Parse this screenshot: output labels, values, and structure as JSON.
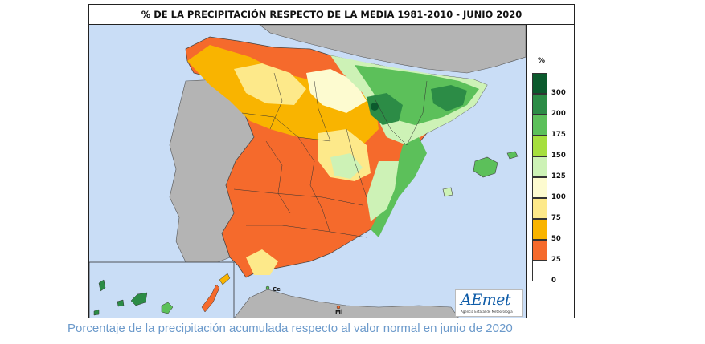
{
  "title": "% DE LA PRECIPITACIÓN RESPECTO DE LA MEDIA 1981-2010 - JUNIO 2020",
  "caption": "Porcentaje de la precipitación acumulada respecto al valor normal en junio de 2020",
  "legend": {
    "unit": "%",
    "classes": [
      {
        "label": "300",
        "color": "#0b5a2d"
      },
      {
        "label": "200",
        "color": "#2c8c46"
      },
      {
        "label": "175",
        "color": "#5cc05a"
      },
      {
        "label": "150",
        "color": "#a6df3e"
      },
      {
        "label": "125",
        "color": "#cdf2b6"
      },
      {
        "label": "100",
        "color": "#fdfbd0"
      },
      {
        "label": "75",
        "color": "#fde98a"
      },
      {
        "label": "50",
        "color": "#f9b400"
      },
      {
        "label": "25",
        "color": "#f56a2c"
      },
      {
        "label": "0",
        "color": "#ffffff"
      }
    ]
  },
  "map_labels": {
    "ceuta": "Ce",
    "melilla": "Ml"
  },
  "logo": {
    "name": "AEmet",
    "subtitle": "Agencia Estatal de Meteorología"
  },
  "colors": {
    "sea": "#c9ddf6",
    "land_outside": "#b4b4b4",
    "low_precip": "#f56a2c",
    "orange": "#f9b400",
    "yellow": "#fde98a",
    "light_yellow": "#fdfbd0",
    "light_green": "#cdf2b6",
    "green": "#5cc05a",
    "dark_green": "#2c8c46",
    "caption": "#6c9acb"
  }
}
